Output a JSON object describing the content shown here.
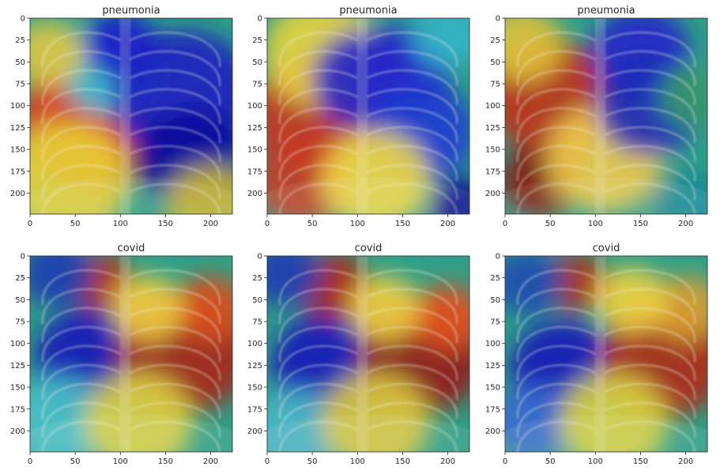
{
  "panels": [
    {
      "title": "pneumonia",
      "blobs": [
        {
          "cx": 80,
          "cy": 150,
          "r": 55,
          "color": "#8b0000"
        },
        {
          "cx": 55,
          "cy": 120,
          "r": 70,
          "color": "#e23b1c"
        },
        {
          "cx": 40,
          "cy": 185,
          "r": 70,
          "color": "#e8d23a"
        },
        {
          "cx": 90,
          "cy": 60,
          "r": 55,
          "color": "#33c1d6"
        },
        {
          "cx": 100,
          "cy": 30,
          "r": 40,
          "color": "#1a1ac6"
        },
        {
          "cx": 170,
          "cy": 90,
          "r": 80,
          "color": "#1c1cc0"
        },
        {
          "cx": 180,
          "cy": 160,
          "r": 60,
          "color": "#0b0b9a"
        },
        {
          "cx": 200,
          "cy": 215,
          "r": 50,
          "color": "#c8b52c"
        },
        {
          "cx": 20,
          "cy": 40,
          "r": 40,
          "color": "#e0c642"
        }
      ]
    },
    {
      "title": "pneumonia",
      "blobs": [
        {
          "cx": 50,
          "cy": 110,
          "r": 70,
          "color": "#c8351c"
        },
        {
          "cx": 40,
          "cy": 185,
          "r": 55,
          "color": "#c63a25"
        },
        {
          "cx": 60,
          "cy": 40,
          "r": 65,
          "color": "#e8d33d"
        },
        {
          "cx": 110,
          "cy": 70,
          "r": 60,
          "color": "#2224c8"
        },
        {
          "cx": 150,
          "cy": 60,
          "r": 55,
          "color": "#2528c8"
        },
        {
          "cx": 170,
          "cy": 130,
          "r": 60,
          "color": "#1d3ad0"
        },
        {
          "cx": 120,
          "cy": 185,
          "r": 60,
          "color": "#f0d746"
        },
        {
          "cx": 215,
          "cy": 215,
          "r": 35,
          "color": "#0a1090"
        },
        {
          "cx": 200,
          "cy": 20,
          "r": 40,
          "color": "#33b5c6"
        }
      ]
    },
    {
      "title": "pneumonia",
      "blobs": [
        {
          "cx": 50,
          "cy": 90,
          "r": 70,
          "color": "#c0301a"
        },
        {
          "cx": 40,
          "cy": 185,
          "r": 45,
          "color": "#8a1a10"
        },
        {
          "cx": 20,
          "cy": 30,
          "r": 45,
          "color": "#e0c23a"
        },
        {
          "cx": 110,
          "cy": 160,
          "r": 65,
          "color": "#eec94a"
        },
        {
          "cx": 150,
          "cy": 40,
          "r": 55,
          "color": "#2325c8"
        },
        {
          "cx": 160,
          "cy": 100,
          "r": 60,
          "color": "#1c2ab8"
        },
        {
          "cx": 205,
          "cy": 210,
          "r": 40,
          "color": "#1a8a96"
        },
        {
          "cx": 210,
          "cy": 90,
          "r": 40,
          "color": "#3a9a6a"
        }
      ]
    },
    {
      "title": "covid",
      "blobs": [
        {
          "cx": 70,
          "cy": 120,
          "r": 65,
          "color": "#1a1ab8"
        },
        {
          "cx": 80,
          "cy": 30,
          "r": 35,
          "color": "#b8301a"
        },
        {
          "cx": 170,
          "cy": 110,
          "r": 75,
          "color": "#a8261a"
        },
        {
          "cx": 200,
          "cy": 60,
          "r": 40,
          "color": "#d8501e"
        },
        {
          "cx": 30,
          "cy": 190,
          "r": 55,
          "color": "#4ac0c8"
        },
        {
          "cx": 120,
          "cy": 190,
          "r": 60,
          "color": "#dcd042"
        },
        {
          "cx": 30,
          "cy": 20,
          "r": 40,
          "color": "#1c3ab0"
        },
        {
          "cx": 130,
          "cy": 60,
          "r": 40,
          "color": "#f0cd40"
        }
      ]
    },
    {
      "title": "covid",
      "blobs": [
        {
          "cx": 70,
          "cy": 125,
          "r": 65,
          "color": "#1a1ab8"
        },
        {
          "cx": 75,
          "cy": 35,
          "r": 40,
          "color": "#b0251a"
        },
        {
          "cx": 170,
          "cy": 115,
          "r": 70,
          "color": "#961a18"
        },
        {
          "cx": 200,
          "cy": 70,
          "r": 40,
          "color": "#e0521e"
        },
        {
          "cx": 30,
          "cy": 200,
          "r": 50,
          "color": "#4ab5c8"
        },
        {
          "cx": 120,
          "cy": 190,
          "r": 60,
          "color": "#dcc83e"
        },
        {
          "cx": 20,
          "cy": 20,
          "r": 40,
          "color": "#1c3ab0"
        },
        {
          "cx": 130,
          "cy": 60,
          "r": 40,
          "color": "#f0cd40"
        }
      ]
    },
    {
      "title": "covid",
      "blobs": [
        {
          "cx": 65,
          "cy": 130,
          "r": 60,
          "color": "#1a1ab8"
        },
        {
          "cx": 80,
          "cy": 30,
          "r": 35,
          "color": "#b0301a"
        },
        {
          "cx": 175,
          "cy": 120,
          "r": 70,
          "color": "#b02a1a"
        },
        {
          "cx": 200,
          "cy": 60,
          "r": 40,
          "color": "#d8a030"
        },
        {
          "cx": 25,
          "cy": 30,
          "r": 40,
          "color": "#1c4ab0"
        },
        {
          "cx": 30,
          "cy": 190,
          "r": 45,
          "color": "#3a6ad0"
        },
        {
          "cx": 120,
          "cy": 190,
          "r": 60,
          "color": "#d8d040"
        },
        {
          "cx": 140,
          "cy": 50,
          "r": 40,
          "color": "#f0d040"
        }
      ]
    }
  ],
  "axis": {
    "x_ticks": [
      0,
      50,
      100,
      150,
      200
    ],
    "y_ticks": [
      0,
      25,
      50,
      75,
      100,
      125,
      150,
      175,
      200
    ],
    "xlim": [
      0,
      224
    ],
    "ylim": [
      224,
      0
    ]
  },
  "colors": {
    "heatmap_base": "#2f9f88",
    "ribs": "#f4f4ea",
    "frame": "#262626"
  }
}
